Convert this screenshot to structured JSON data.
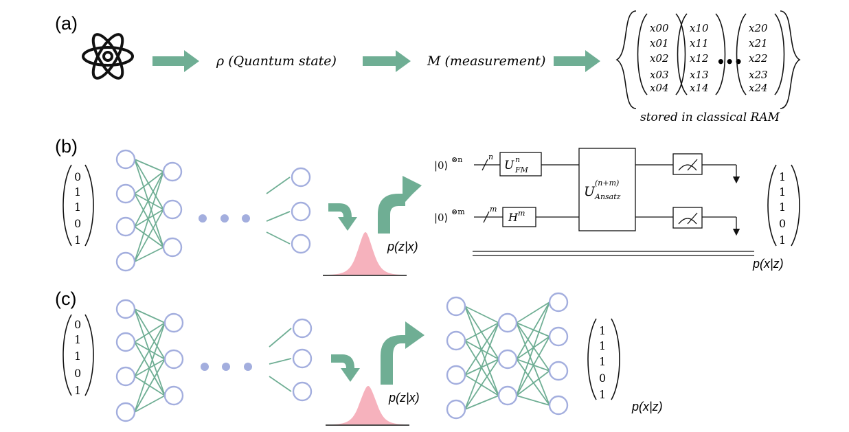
{
  "panels": {
    "a": {
      "label": "(a)",
      "atom_icon": "atom-icon",
      "state_text": "ρ (Quantum state)",
      "measure_text": "M (measurement)",
      "vectors": [
        [
          "x00",
          "x01",
          "x02",
          "x03",
          "x04"
        ],
        [
          "x10",
          "x11",
          "x12",
          "x13",
          "x14"
        ],
        [
          "x20",
          "x21",
          "x22",
          "x23",
          "x24"
        ]
      ],
      "ellipsis": "•••",
      "storage_caption": "stored in classical RAM"
    },
    "b": {
      "label": "(b)",
      "input_vector": [
        "0",
        "1",
        "1",
        "0",
        "1"
      ],
      "latent_label": "p(z|x)",
      "circuit": {
        "ket_n": "|0⟩",
        "ket_n_power": "⊗n",
        "ket_m": "|0⟩",
        "ket_m_power": "⊗m",
        "slash_n": "n",
        "slash_m": "m",
        "gate_fm": "U",
        "gate_fm_sup": "n",
        "gate_fm_sub": "FM",
        "gate_h": "H",
        "gate_h_sup": "m",
        "gate_ansatz": "U",
        "gate_ansatz_sup": "(n+m)",
        "gate_ansatz_sub": "Ansatz"
      },
      "output_vector": [
        "1",
        "1",
        "1",
        "0",
        "1"
      ],
      "output_label": "p(x|z)"
    },
    "c": {
      "label": "(c)",
      "input_vector": [
        "0",
        "1",
        "1",
        "0",
        "1"
      ],
      "latent_label": "p(z|x)",
      "output_vector": [
        "1",
        "1",
        "1",
        "0",
        "1"
      ],
      "output_label": "p(x|z)"
    }
  },
  "colors": {
    "arrow": "#6fae94",
    "node": "#a3aede",
    "gaussian": "#f6b2bd"
  }
}
